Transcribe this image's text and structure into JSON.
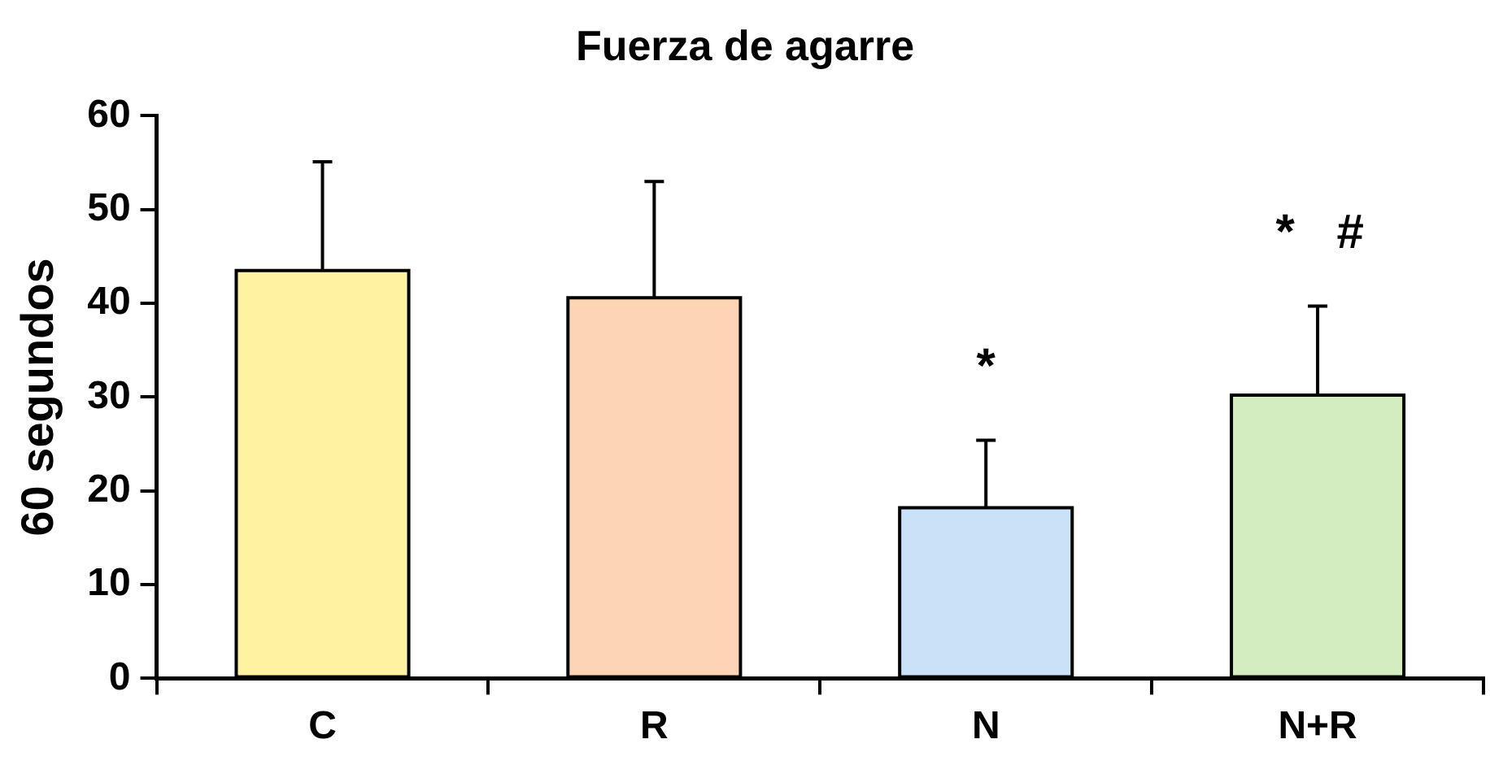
{
  "chart_data": {
    "type": "bar",
    "title": "Fuerza de agarre",
    "ylabel": "60 segundos",
    "categories": [
      "C",
      "R",
      "N",
      "N+R"
    ],
    "values": [
      43.5,
      40.6,
      18.2,
      30.2
    ],
    "colors": [
      "#fff2a0",
      "#fdd5b4",
      "#c9e2f8",
      "#d3ecc0"
    ],
    "errors": [
      [
        43.5,
        55.1
      ],
      [
        40.6,
        53.0
      ],
      [
        18.2,
        25.4
      ],
      [
        30.2,
        39.7
      ]
    ],
    "ylim": [
      0,
      60
    ],
    "yticks": [
      0,
      10,
      20,
      30,
      40,
      50,
      60
    ],
    "grid": false,
    "legend": false,
    "annotations": [
      {
        "text": "*",
        "x": "N",
        "y": 25.4
      },
      {
        "text": "* #",
        "x": "N+R",
        "y": 39.7
      }
    ]
  }
}
